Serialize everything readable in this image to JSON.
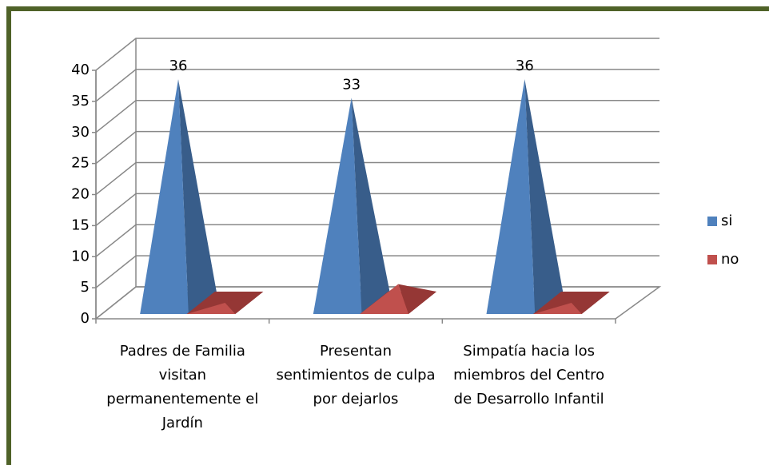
{
  "chart_data": {
    "type": "pyramid3d",
    "categories": [
      "Padres de Familia visitan permanentemente el Jardín",
      "Presentan sentimientos de culpa por dejarlos",
      "Simpatía hacia los miembros del Centro de Desarrollo Infantil"
    ],
    "series": [
      {
        "name": "si",
        "color": "#4f81bd",
        "shade": "#385d8a",
        "values": [
          36,
          33,
          36
        ]
      },
      {
        "name": "no",
        "color": "#c0504d",
        "shade": "#953735",
        "values": [
          0,
          3,
          0
        ]
      }
    ],
    "value_labels_series": 0,
    "ylim": [
      0,
      40
    ],
    "yticks": [
      0,
      5,
      10,
      15,
      20,
      25,
      30,
      35,
      40
    ],
    "grid": true,
    "legend": "right"
  }
}
